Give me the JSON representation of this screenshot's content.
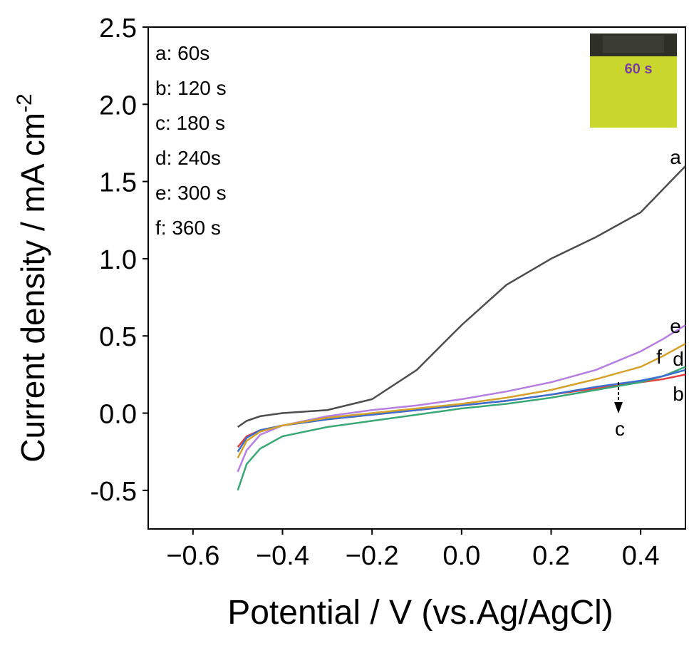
{
  "chart_data": {
    "type": "line",
    "xlabel": "Potential / V (vs.Ag/AgCl)",
    "ylabel": "Current density / mA cm",
    "ylabel_sup": "-2",
    "inset_label": "60 s",
    "x": [
      -0.5,
      -0.48,
      -0.45,
      -0.4,
      -0.3,
      -0.2,
      -0.1,
      0,
      0.1,
      0.2,
      0.3,
      0.4,
      0.45,
      0.5
    ],
    "series": [
      {
        "name": "a: 60s",
        "label": "a",
        "color": "#4d4d4d",
        "values": [
          -0.09,
          -0.05,
          -0.02,
          0.0,
          0.02,
          0.09,
          0.28,
          0.57,
          0.83,
          1.0,
          1.14,
          1.3,
          1.45,
          1.6
        ]
      },
      {
        "name": "b: 120 s",
        "label": "b",
        "color": "#e2413f",
        "values": [
          -0.22,
          -0.15,
          -0.11,
          -0.08,
          -0.04,
          -0.01,
          0.02,
          0.05,
          0.08,
          0.12,
          0.16,
          0.2,
          0.22,
          0.25
        ]
      },
      {
        "name": "c: 180 s",
        "label": "c",
        "color": "#3aa876",
        "values": [
          -0.5,
          -0.33,
          -0.23,
          -0.15,
          -0.09,
          -0.05,
          -0.01,
          0.03,
          0.06,
          0.1,
          0.15,
          0.2,
          0.24,
          0.3
        ]
      },
      {
        "name": "d: 240s",
        "label": "d",
        "color": "#3a6fd0",
        "values": [
          -0.25,
          -0.16,
          -0.11,
          -0.08,
          -0.04,
          -0.01,
          0.02,
          0.05,
          0.08,
          0.12,
          0.17,
          0.21,
          0.24,
          0.28
        ]
      },
      {
        "name": "e: 300 s",
        "label": "e",
        "color": "#b57ee0",
        "values": [
          -0.38,
          -0.24,
          -0.14,
          -0.08,
          -0.02,
          0.02,
          0.05,
          0.09,
          0.14,
          0.2,
          0.28,
          0.4,
          0.48,
          0.57
        ]
      },
      {
        "name": "f: 360 s",
        "label": "f",
        "color": "#d4a12a",
        "values": [
          -0.29,
          -0.18,
          -0.12,
          -0.08,
          -0.03,
          0.0,
          0.03,
          0.06,
          0.1,
          0.15,
          0.22,
          0.3,
          0.37,
          0.45
        ]
      }
    ],
    "xlim": [
      -0.7,
      0.5
    ],
    "ylim": [
      -0.75,
      2.5
    ],
    "xticks": [
      {
        "value": -0.6,
        "label": "−0.6"
      },
      {
        "value": -0.4,
        "label": "−0.4"
      },
      {
        "value": -0.2,
        "label": "−0.2"
      },
      {
        "value": 0,
        "label": "0.0"
      },
      0.2,
      0.4
    ],
    "yticks": [
      {
        "value": -0.5,
        "label": "-0.5"
      },
      {
        "value": 0,
        "label": "0.0"
      },
      0.5,
      {
        "value": 1,
        "label": "1.0"
      },
      1.5,
      {
        "value": 2,
        "label": "2.0"
      },
      2.5
    ]
  }
}
